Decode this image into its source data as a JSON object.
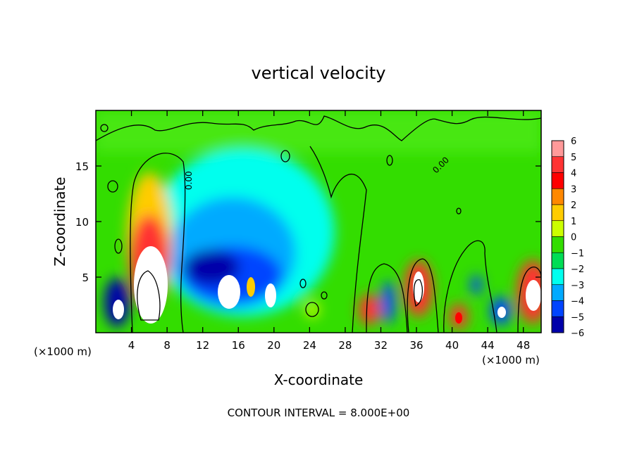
{
  "chart_data": {
    "type": "heatmap",
    "title": "vertical velocity",
    "xlabel": "X-coordinate",
    "ylabel": "Z-coordinate",
    "x_unit_note": "(×1000 m)",
    "xlim": [
      0,
      50
    ],
    "ylim": [
      0,
      20
    ],
    "x_ticks": [
      4,
      8,
      12,
      16,
      20,
      24,
      28,
      32,
      36,
      40,
      44,
      48
    ],
    "y_ticks": [
      5,
      10,
      15
    ],
    "contour_label": "0.00",
    "footer": "CONTOUR INTERVAL = 8.000E+00",
    "colorbar": {
      "levels": [
        6,
        5,
        4,
        3,
        2,
        1,
        0,
        -1,
        -2,
        -3,
        -4,
        -5,
        -6
      ],
      "colors": [
        "#ff9999",
        "#ff3333",
        "#ff0000",
        "#ff8800",
        "#ffcc00",
        "#ccff00",
        "#33dd00",
        "#00dd55",
        "#00ffee",
        "#00aaff",
        "#0044ff",
        "#0000aa",
        "#6600aa"
      ]
    },
    "features": [
      {
        "x": 2.5,
        "z": 2.0,
        "value": -6
      },
      {
        "x": 6.0,
        "z": 4.0,
        "value": 12
      },
      {
        "x": 6.0,
        "z": 9.0,
        "value": 4
      },
      {
        "x": 13.5,
        "z": 4.5,
        "value": -5
      },
      {
        "x": 15.0,
        "z": 3.5,
        "value": -10
      },
      {
        "x": 17.5,
        "z": 4.0,
        "value": 3
      },
      {
        "x": 19.5,
        "z": 3.5,
        "value": -10
      },
      {
        "x": 23.5,
        "z": 2.0,
        "value": 2
      },
      {
        "x": 30.5,
        "z": 2.0,
        "value": 4
      },
      {
        "x": 33.0,
        "z": 2.5,
        "value": -4
      },
      {
        "x": 36.0,
        "z": 3.5,
        "value": 8
      },
      {
        "x": 40.0,
        "z": 1.5,
        "value": 5
      },
      {
        "x": 42.5,
        "z": 4.0,
        "value": -3
      },
      {
        "x": 45.5,
        "z": 2.0,
        "value": -6
      },
      {
        "x": 49.0,
        "z": 3.5,
        "value": 8
      }
    ]
  }
}
